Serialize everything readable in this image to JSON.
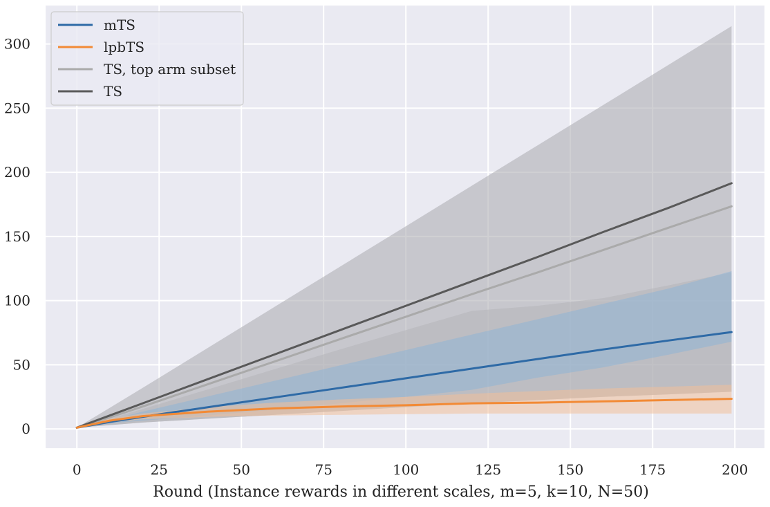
{
  "chart_data": {
    "type": "line",
    "title": "",
    "xlabel": "Round (Instance rewards in different scales, m=5, k=10, N=50)",
    "ylabel": "",
    "xlim": [
      -9.5,
      209
    ],
    "ylim": [
      -15,
      330
    ],
    "x_ticks": [
      0,
      25,
      50,
      75,
      100,
      125,
      150,
      175,
      200
    ],
    "y_ticks": [
      0,
      50,
      100,
      150,
      200,
      250,
      300
    ],
    "grid": true,
    "legend_position": "top-left",
    "x": [
      0,
      10,
      20,
      40,
      60,
      80,
      100,
      120,
      140,
      160,
      180,
      199
    ],
    "series": [
      {
        "name": "mTS",
        "color": "#2e6aa6",
        "values": [
          1,
          5.5,
          9.5,
          17,
          24.5,
          32,
          39.5,
          47,
          54.5,
          62,
          69,
          75.5
        ],
        "band_low": [
          1,
          4.5,
          6.5,
          10.5,
          15,
          20,
          25,
          30.5,
          40,
          48,
          58,
          68
        ],
        "band_high": [
          1,
          7,
          13.5,
          25.5,
          37.5,
          49.5,
          61.5,
          73.5,
          85.5,
          97.5,
          109.5,
          123
        ],
        "band_color": "#8fb4d6"
      },
      {
        "name": "lpbTS",
        "color": "#f28a35",
        "values": [
          1,
          6.5,
          10,
          13.5,
          16,
          17.5,
          18.5,
          20,
          20.5,
          21.5,
          22.5,
          23.5
        ],
        "band_low": [
          1,
          5,
          7.5,
          9.5,
          10.5,
          11,
          11.5,
          12,
          12,
          12,
          12,
          12
        ],
        "band_high": [
          1,
          8,
          12,
          17,
          20.5,
          23,
          25,
          27.5,
          29.5,
          31.5,
          33,
          34.5
        ],
        "band_color": "#f0c09a"
      },
      {
        "name": "TS, top arm subset",
        "color": "#aaaaaa",
        "values": [
          1,
          9,
          17.5,
          35,
          52.5,
          70,
          87.5,
          105,
          122,
          139.5,
          157,
          173.5
        ],
        "band_low": [
          1,
          3,
          5,
          8,
          11,
          14,
          17,
          20,
          22.5,
          25,
          27,
          29
        ],
        "band_high": [
          1,
          8,
          15.5,
          31,
          46.5,
          62,
          77,
          92,
          96,
          102,
          112,
          122
        ],
        "band_color": "#b5b5b9"
      },
      {
        "name": "TS",
        "color": "#595959",
        "values": [
          1,
          10.5,
          20,
          39,
          58,
          77,
          96,
          115,
          134,
          153.5,
          172.5,
          191.5
        ],
        "band_low": [
          1,
          3,
          5,
          8,
          11,
          14,
          17,
          20,
          22.5,
          25,
          27,
          29
        ],
        "band_high": [
          1,
          16.5,
          32,
          63.5,
          95,
          126.5,
          158,
          189.5,
          221,
          252.5,
          284,
          314
        ],
        "band_color": "#a9a9ae"
      }
    ]
  }
}
